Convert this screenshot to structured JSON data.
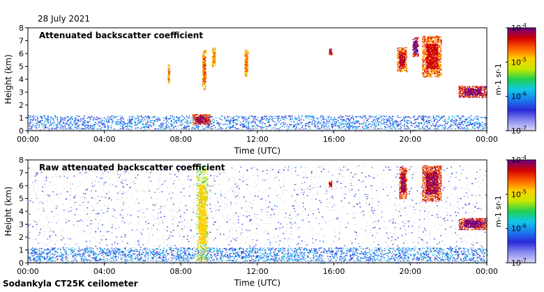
{
  "figure": {
    "date": "28 July 2021",
    "footer": "Sodankyla CT25K ceilometer"
  },
  "colors": {
    "background_noise": "#d9d9d9",
    "colormap": [
      "#d8d8f6",
      "#8a8af0",
      "#2a2ad8",
      "#1a7cf0",
      "#10c8e8",
      "#20d050",
      "#c8e800",
      "#ffd000",
      "#ff6000",
      "#d00000",
      "#6a0088"
    ]
  },
  "chart_data": [
    {
      "type": "heatmap",
      "title": "Attenuated backscatter coefficient",
      "xlabel": "Time (UTC)",
      "ylabel": "Height (km)",
      "x_ticks": [
        "00:00",
        "04:00",
        "08:00",
        "12:00",
        "16:00",
        "20:00",
        "00:00"
      ],
      "x_tick_hours": [
        0,
        4,
        8,
        12,
        16,
        20,
        24
      ],
      "xlim_hours": [
        0,
        24
      ],
      "y_ticks": [
        0,
        1,
        2,
        3,
        4,
        5,
        6,
        7,
        8
      ],
      "ylim": [
        0,
        8
      ],
      "colorbar": {
        "label": "m-1 sr-1",
        "scale": "log",
        "range": [
          1e-07,
          0.0001
        ],
        "ticks": [
          "10-7",
          "10-6",
          "10-5",
          "10-4"
        ]
      },
      "features": [
        {
          "name": "boundary layer aerosol",
          "start_hour": 0,
          "end_hour": 24,
          "bottom_km": 0,
          "top_km": 1.2,
          "level": 0.28
        },
        {
          "name": "fog / low cloud",
          "start_hour": 8.6,
          "end_hour": 9.5,
          "bottom_km": 0.5,
          "top_km": 1.3,
          "level": 0.85
        },
        {
          "name": "cloud streak",
          "start_hour": 7.3,
          "end_hour": 7.4,
          "bottom_km": 3.6,
          "top_km": 5.2,
          "level": 0.7
        },
        {
          "name": "cloud streak",
          "start_hour": 9.1,
          "end_hour": 9.3,
          "bottom_km": 3.2,
          "top_km": 6.3,
          "level": 0.72
        },
        {
          "name": "cloud streak",
          "start_hour": 9.6,
          "end_hour": 9.8,
          "bottom_km": 5.0,
          "top_km": 6.5,
          "level": 0.68
        },
        {
          "name": "cloud streak",
          "start_hour": 11.3,
          "end_hour": 11.5,
          "bottom_km": 4.2,
          "top_km": 6.3,
          "level": 0.7
        },
        {
          "name": "cloud",
          "start_hour": 15.7,
          "end_hour": 15.9,
          "bottom_km": 5.9,
          "top_km": 6.4,
          "level": 0.85
        },
        {
          "name": "cloud",
          "start_hour": 19.3,
          "end_hour": 19.8,
          "bottom_km": 4.6,
          "top_km": 6.5,
          "level": 0.82
        },
        {
          "name": "cloud",
          "start_hour": 20.1,
          "end_hour": 20.4,
          "bottom_km": 5.8,
          "top_km": 7.3,
          "level": 0.92
        },
        {
          "name": "cloud",
          "start_hour": 20.6,
          "end_hour": 21.6,
          "bottom_km": 4.2,
          "top_km": 7.4,
          "level": 0.8
        },
        {
          "name": "low cloud",
          "start_hour": 22.5,
          "end_hour": 24,
          "bottom_km": 2.6,
          "top_km": 3.5,
          "level": 0.88
        }
      ]
    },
    {
      "type": "heatmap",
      "title": "Raw attenuated backscatter coefficient",
      "xlabel": "Time (UTC)",
      "ylabel": "Height (km)",
      "x_ticks": [
        "00:00",
        "04:00",
        "08:00",
        "12:00",
        "16:00",
        "20:00",
        "00:00"
      ],
      "x_tick_hours": [
        0,
        4,
        8,
        12,
        16,
        20,
        24
      ],
      "xlim_hours": [
        0,
        24
      ],
      "y_ticks": [
        0,
        1,
        2,
        3,
        4,
        5,
        6,
        7,
        8
      ],
      "ylim": [
        0,
        8
      ],
      "colorbar": {
        "label": "m-1 sr-1",
        "scale": "log",
        "range": [
          1e-07,
          0.0001
        ],
        "ticks": [
          "10-7",
          "10-6",
          "10-5",
          "10-4"
        ]
      },
      "features": [
        {
          "name": "noise field",
          "start_hour": 0,
          "end_hour": 24,
          "bottom_km": 0,
          "top_km": 7.6,
          "level": 0.18
        },
        {
          "name": "boundary layer aerosol",
          "start_hour": 0,
          "end_hour": 24,
          "bottom_km": 0,
          "top_km": 1.2,
          "level": 0.3
        },
        {
          "name": "dense column",
          "start_hour": 8.8,
          "end_hour": 9.4,
          "bottom_km": 0,
          "top_km": 7.6,
          "level": 0.6
        },
        {
          "name": "cloud",
          "start_hour": 15.7,
          "end_hour": 15.9,
          "bottom_km": 5.9,
          "top_km": 6.4,
          "level": 0.85
        },
        {
          "name": "cloud",
          "start_hour": 19.4,
          "end_hour": 19.8,
          "bottom_km": 5.0,
          "top_km": 7.5,
          "level": 0.85
        },
        {
          "name": "cloud",
          "start_hour": 20.6,
          "end_hour": 21.6,
          "bottom_km": 4.8,
          "top_km": 7.6,
          "level": 0.85
        },
        {
          "name": "low cloud",
          "start_hour": 22.5,
          "end_hour": 24,
          "bottom_km": 2.6,
          "top_km": 3.5,
          "level": 0.88
        }
      ]
    }
  ]
}
